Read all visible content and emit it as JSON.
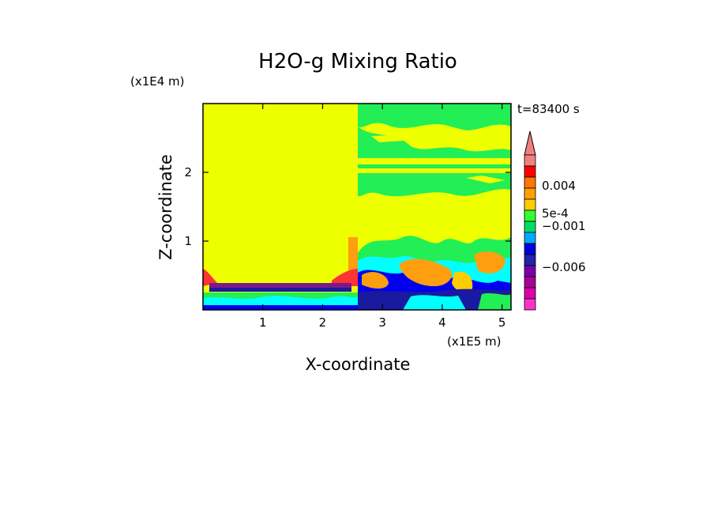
{
  "chart_data": {
    "type": "heatmap",
    "title": "H2O-g Mixing Ratio",
    "xlabel": "X-coordinate",
    "ylabel": "Z-coordinate",
    "x_scale_note": "(x1E5 m)",
    "y_scale_note": "(x1E4 m)",
    "time_label": "t=83400 s",
    "xlim": [
      0,
      5.15
    ],
    "ylim": [
      0,
      3.0
    ],
    "x_ticks": [
      "1",
      "2",
      "3",
      "4",
      "5"
    ],
    "x_tick_values": [
      1,
      2,
      3,
      4,
      5
    ],
    "y_ticks": [
      "1",
      "2"
    ],
    "y_tick_values": [
      1,
      2
    ],
    "colorbar": {
      "labels": [
        "0.004",
        "5e-4",
        "−0.001",
        "−0.006"
      ],
      "colors": [
        "#f08080",
        "#ff0000",
        "#ff7700",
        "#ffa000",
        "#ffcc00",
        "#33ff33",
        "#00dd66",
        "#00aaff",
        "#0000dd",
        "#2222aa",
        "#7700aa",
        "#aa0099",
        "#dd00aa",
        "#ff33cc"
      ],
      "triangle_color": "#f08080"
    },
    "field_colors": {
      "background": "#eeff00",
      "green": "#22ee55",
      "cyan": "#00ffff",
      "orange": "#ff9f10",
      "blue": "#0000ee",
      "navy": "#1a1aa0",
      "purple": "#7a1a8a",
      "red": "#ff3333"
    }
  }
}
